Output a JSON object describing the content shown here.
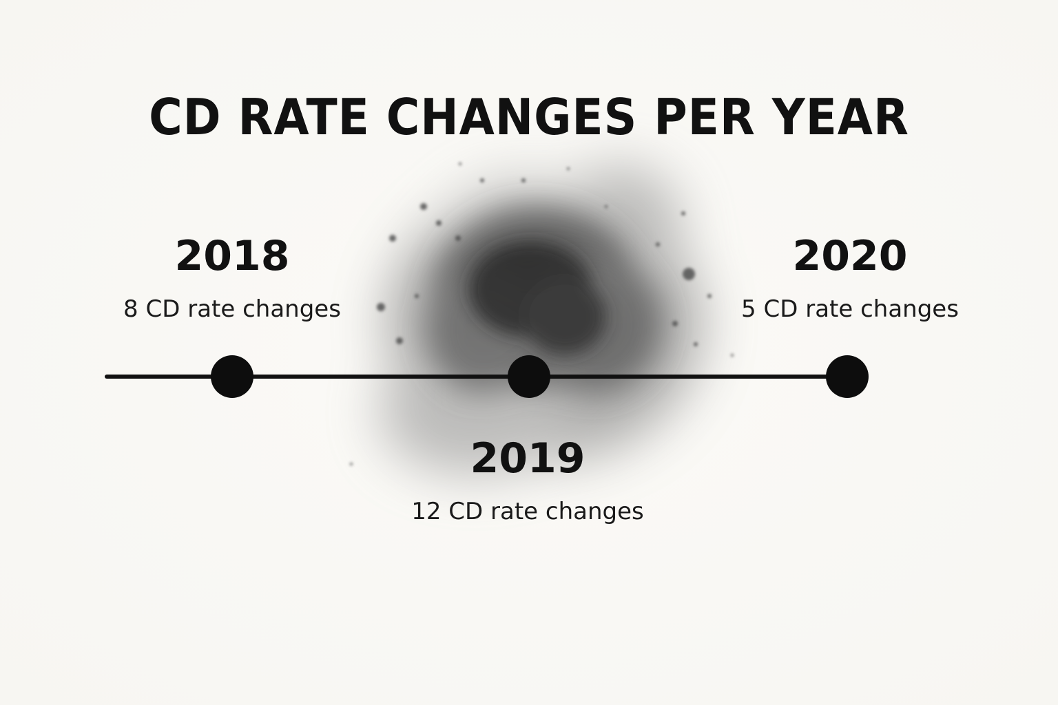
{
  "title": "CD RATE CHANGES PER YEAR",
  "colors": {
    "ink": "#111111",
    "background": "#faf9f6",
    "splash": "#3a3a3a"
  },
  "timeline": [
    {
      "year": "2018",
      "description": "8 CD rate changes",
      "changes": 8
    },
    {
      "year": "2019",
      "description": "12 CD rate changes",
      "changes": 12
    },
    {
      "year": "2020",
      "description": "5 CD rate changes",
      "changes": 5
    }
  ]
}
